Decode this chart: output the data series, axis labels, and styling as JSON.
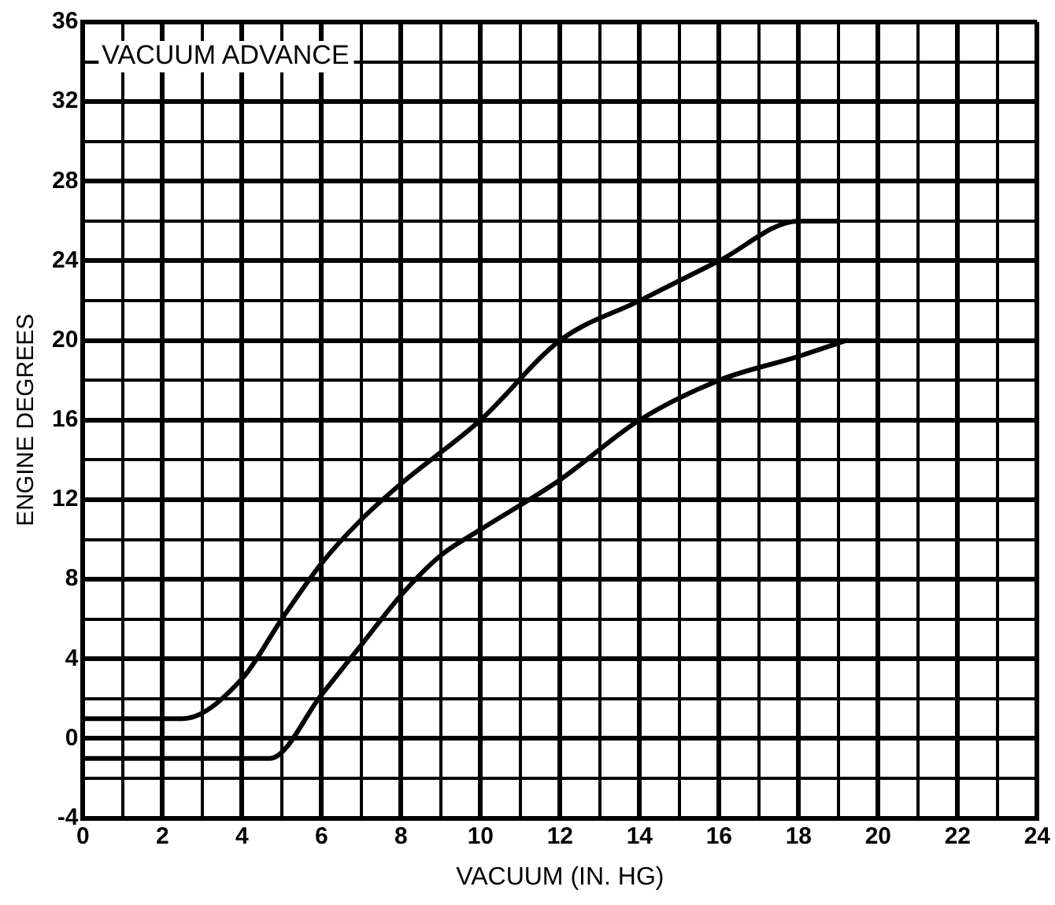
{
  "chart_data": {
    "type": "line",
    "xlabel": "VACUUM (IN. HG)",
    "ylabel": "ENGINE DEGREES",
    "annotations": [
      "VACUUM ADVANCE"
    ],
    "xlim": [
      0,
      24
    ],
    "ylim": [
      -4,
      36
    ],
    "xticks": [
      0,
      {
        "value": 1,
        "label": null
      },
      2,
      {
        "value": 3,
        "label": null
      },
      4,
      {
        "value": 5,
        "label": null
      },
      6,
      {
        "value": 7,
        "label": null
      },
      8,
      {
        "value": 9,
        "label": null
      },
      10,
      {
        "value": 11,
        "label": null
      },
      12,
      {
        "value": 13,
        "label": null
      },
      14,
      {
        "value": 15,
        "label": null
      },
      16,
      {
        "value": 17,
        "label": null
      },
      18,
      {
        "value": 19,
        "label": null
      },
      20,
      {
        "value": 21,
        "label": null
      },
      22,
      {
        "value": 23,
        "label": null
      },
      24
    ],
    "yticks": [
      -4,
      {
        "value": -2,
        "label": null
      },
      0,
      {
        "value": 2,
        "label": null
      },
      4,
      {
        "value": 6,
        "label": null
      },
      8,
      {
        "value": 10,
        "label": null
      },
      12,
      {
        "value": 14,
        "label": null
      },
      16,
      {
        "value": 18,
        "label": null
      },
      20,
      {
        "value": 22,
        "label": null
      },
      24,
      {
        "value": 26,
        "label": null
      },
      28,
      {
        "value": 30,
        "label": null
      },
      32,
      {
        "value": 34,
        "label": null
      },
      36
    ],
    "grid": true,
    "legend": false,
    "marker": "none",
    "line_style": "solid",
    "series": [
      {
        "color": "#000000",
        "x": [
          0,
          2.5,
          4,
          5,
          6,
          7,
          8,
          10,
          12,
          14,
          16,
          18,
          19
        ],
        "values": [
          1,
          1,
          3,
          6,
          8.8,
          11,
          12.8,
          16,
          20,
          22,
          24,
          26,
          26
        ]
      },
      {
        "color": "#000000",
        "x": [
          0,
          4.7,
          6,
          7,
          8,
          9,
          10,
          12,
          14,
          16,
          18,
          19.2
        ],
        "values": [
          -1,
          -1,
          2.2,
          4.7,
          7.2,
          9.2,
          10.5,
          13,
          16,
          18,
          19.2,
          20
        ]
      }
    ]
  }
}
